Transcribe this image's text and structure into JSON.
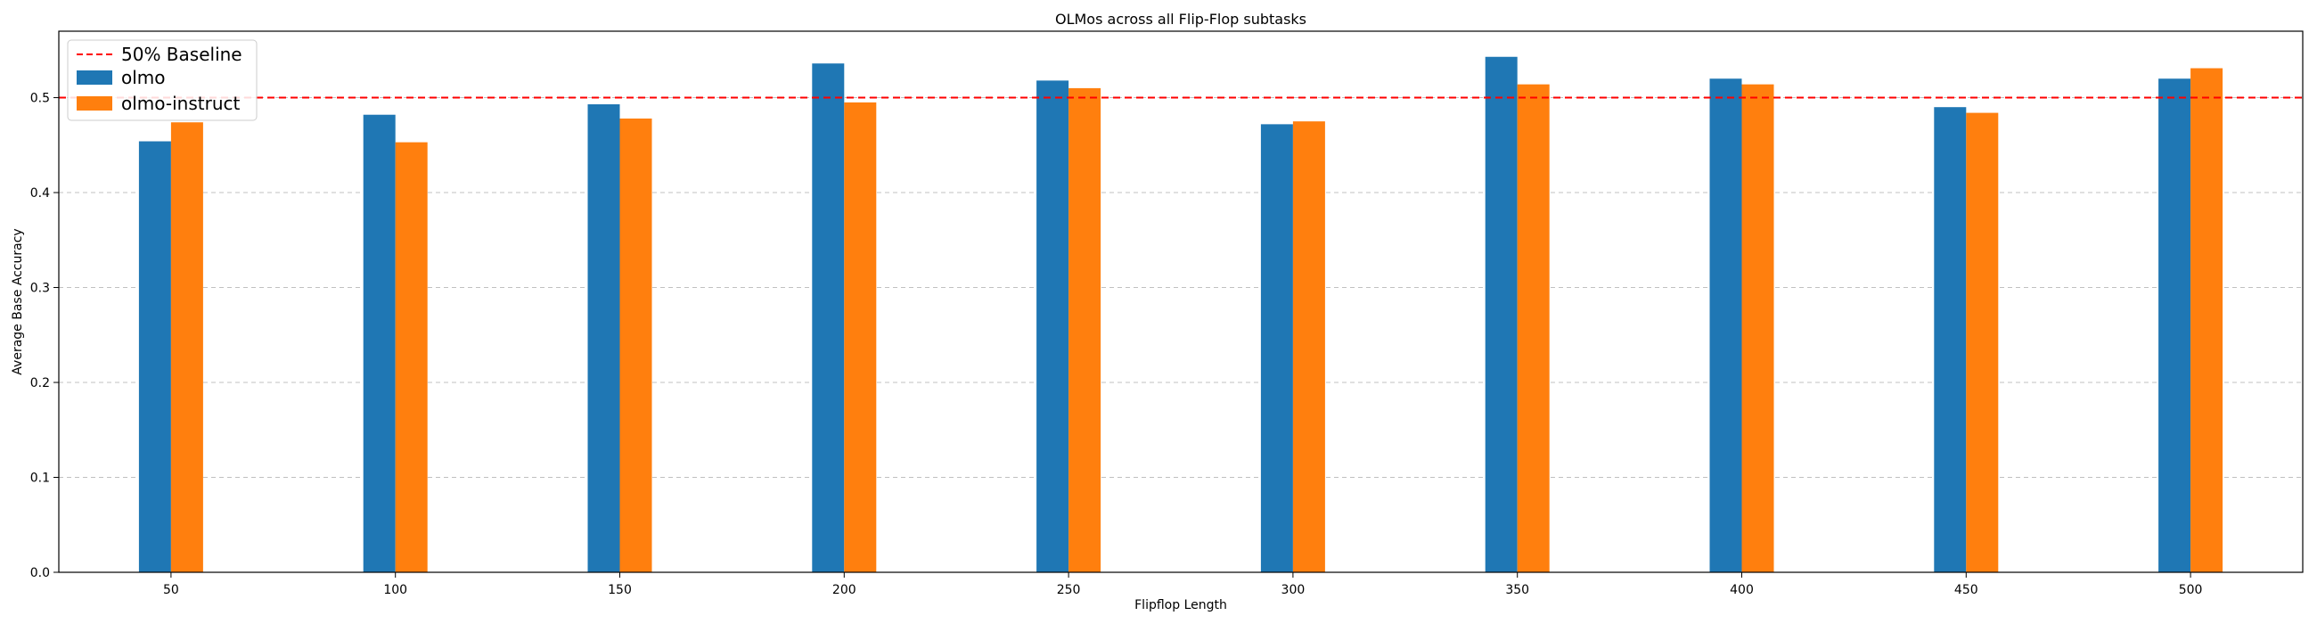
{
  "chart_data": {
    "type": "bar",
    "title": "OLMos across all Flip-Flop subtasks",
    "xlabel": "Flipflop Length",
    "ylabel": "Average Base Accuracy",
    "categories": [
      "50",
      "100",
      "150",
      "200",
      "250",
      "300",
      "350",
      "400",
      "450",
      "500"
    ],
    "series": [
      {
        "name": "olmo",
        "color": "#1f77b4",
        "values": [
          0.454,
          0.482,
          0.493,
          0.536,
          0.518,
          0.472,
          0.543,
          0.52,
          0.49,
          0.52
        ]
      },
      {
        "name": "olmo-instruct",
        "color": "#ff7f0e",
        "values": [
          0.474,
          0.453,
          0.478,
          0.495,
          0.51,
          0.475,
          0.514,
          0.514,
          0.484,
          0.531
        ]
      }
    ],
    "baseline": {
      "label": "50% Baseline",
      "value": 0.5,
      "color": "#ff0000",
      "style": "dashed"
    },
    "ylim": [
      0,
      0.57
    ],
    "yticks": [
      "0.0",
      "0.1",
      "0.2",
      "0.3",
      "0.4",
      "0.5"
    ],
    "grid": "y-dashed",
    "legend_position": "top-left"
  }
}
